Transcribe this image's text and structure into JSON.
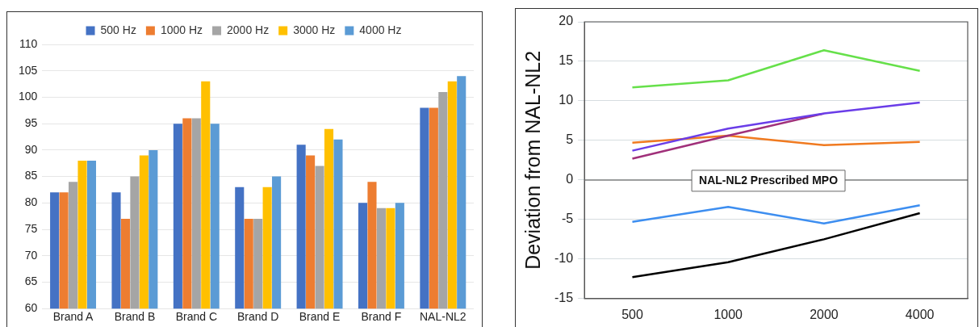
{
  "chart_data": [
    {
      "type": "bar",
      "categories": [
        "Brand A",
        "Brand B",
        "Brand C",
        "Brand D",
        "Brand E",
        "Brand F",
        "NAL-NL2"
      ],
      "series": [
        {
          "name": "500 Hz",
          "color": "#4472c4",
          "values": [
            82,
            82,
            95,
            83,
            91,
            80,
            98
          ]
        },
        {
          "name": "1000 Hz",
          "color": "#ed7d31",
          "values": [
            82,
            77,
            96,
            77,
            89,
            84,
            98
          ]
        },
        {
          "name": "2000 Hz",
          "color": "#a5a5a5",
          "values": [
            84,
            85,
            96,
            77,
            87,
            79,
            101
          ]
        },
        {
          "name": "3000 Hz",
          "color": "#ffc000",
          "values": [
            88,
            89,
            103,
            83,
            94,
            79,
            103
          ]
        },
        {
          "name": "4000 Hz",
          "color": "#5b9bd5",
          "values": [
            88,
            90,
            95,
            85,
            92,
            80,
            104
          ]
        }
      ],
      "ylim": [
        60,
        110
      ],
      "yticks": [
        60,
        65,
        70,
        75,
        80,
        85,
        90,
        95,
        100,
        105,
        110
      ],
      "grid": "y",
      "legend": "top"
    },
    {
      "type": "line",
      "ylabel": "Deviation from NAL-NL2",
      "categories": [
        "500",
        "1000",
        "2000",
        "4000"
      ],
      "series": [
        {
          "color": "#66e04a",
          "values": [
            11.7,
            12.6,
            16.4,
            13.8
          ]
        },
        {
          "color": "#6a3de8",
          "values": [
            3.7,
            6.5,
            8.4,
            9.8
          ]
        },
        {
          "color": "#a0307a",
          "values": [
            2.7,
            5.6,
            8.4,
            null
          ]
        },
        {
          "color": "#f07a20",
          "values": [
            4.7,
            5.6,
            4.4,
            4.8
          ]
        },
        {
          "color": "#3d8ef0",
          "values": [
            -5.3,
            -3.4,
            -5.5,
            -3.2
          ]
        },
        {
          "color": "#000000",
          "values": [
            -12.3,
            -10.4,
            -7.5,
            -4.2
          ]
        }
      ],
      "ylim": [
        -15,
        20
      ],
      "yticks": [
        -15,
        -10,
        -5,
        0,
        5,
        10,
        15,
        20
      ],
      "grid": "y",
      "marker": "none",
      "line_style": "solid",
      "ref_lines": [
        {
          "axis": "y",
          "value": 0,
          "label": "NAL-NL2 Prescribed MPO",
          "color": "#808080"
        }
      ]
    }
  ]
}
